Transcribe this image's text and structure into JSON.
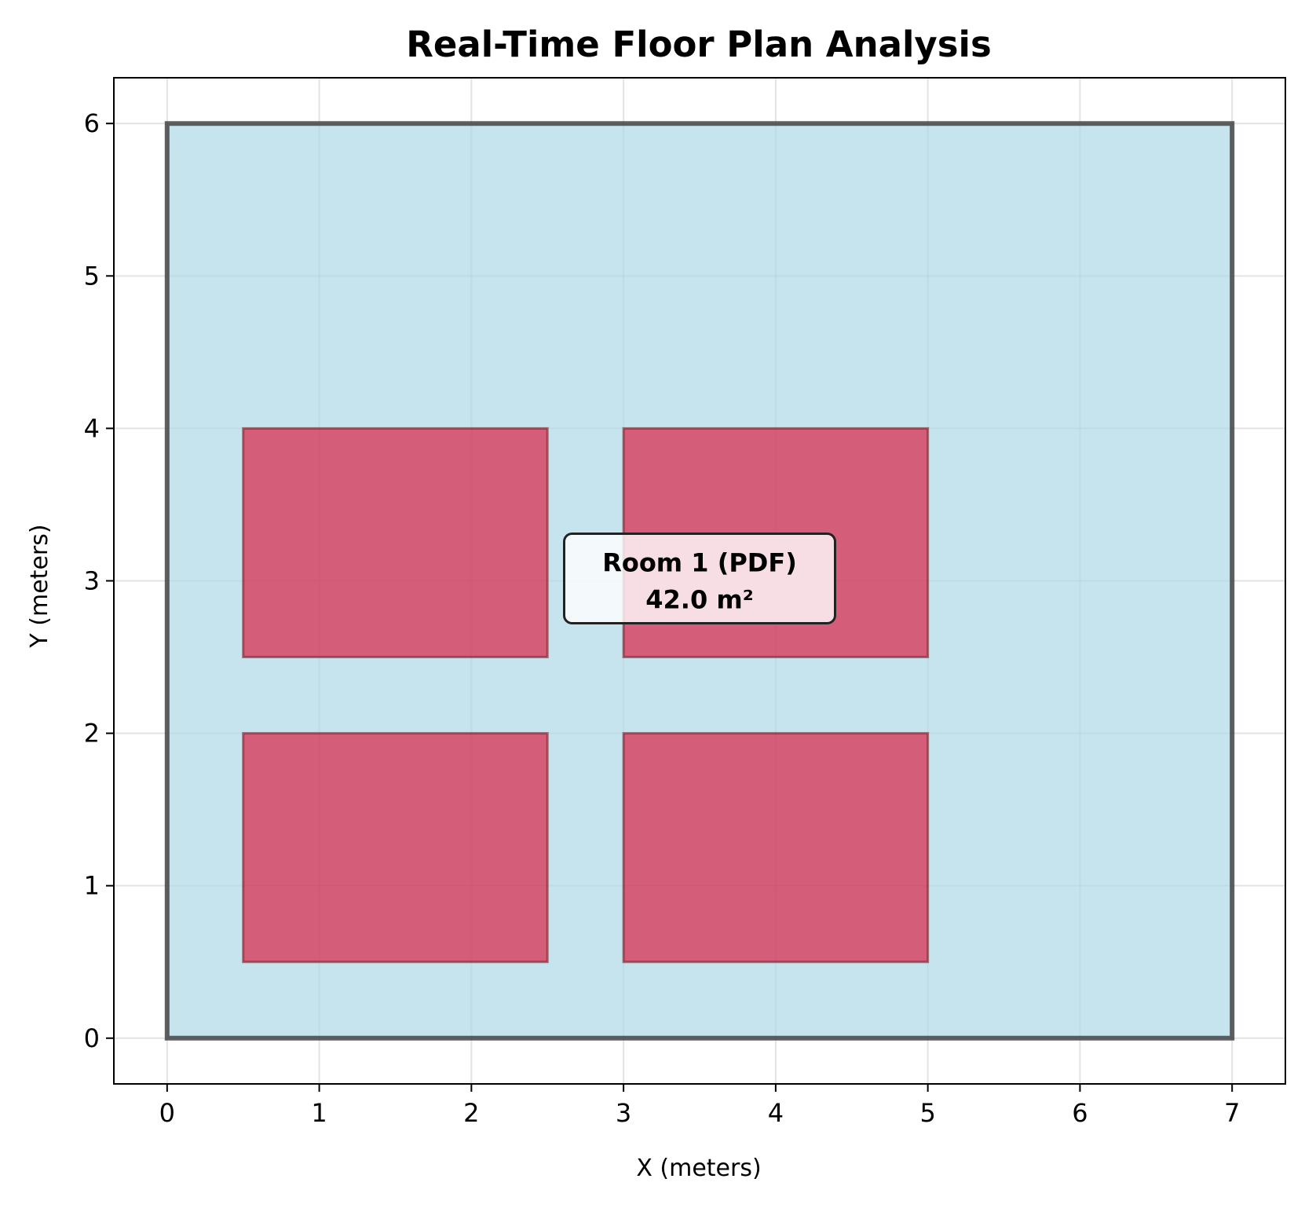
{
  "chart_data": {
    "type": "floor_plan",
    "title": "Real-Time Floor Plan Analysis",
    "xlabel": "X (meters)",
    "ylabel": "Y (meters)",
    "xlim": [
      -0.35,
      7.35
    ],
    "ylim": [
      -0.3,
      6.3
    ],
    "xticks": [
      0,
      1,
      2,
      3,
      4,
      5,
      6,
      7
    ],
    "yticks": [
      0,
      1,
      2,
      3,
      4,
      5,
      6
    ],
    "grid": true,
    "room": {
      "name": "Room 1 (PDF)",
      "polygon": [
        [
          0,
          0
        ],
        [
          7,
          0
        ],
        [
          7,
          6
        ],
        [
          0,
          6
        ]
      ],
      "fill": "#add8e6",
      "edge": "#444444"
    },
    "obstacles": [
      {
        "x": 0.5,
        "y": 2.5,
        "width": 2.0,
        "height": 1.5
      },
      {
        "x": 3.0,
        "y": 2.5,
        "width": 2.0,
        "height": 1.5
      },
      {
        "x": 0.5,
        "y": 0.5,
        "width": 2.0,
        "height": 1.5
      },
      {
        "x": 3.0,
        "y": 0.5,
        "width": 2.0,
        "height": 1.5
      }
    ],
    "obstacle_fill": "#dc143c",
    "annotation": {
      "line1": "Room 1 (PDF)",
      "line2": "42.0 m²",
      "x": 3.5,
      "y": 3.0
    }
  }
}
